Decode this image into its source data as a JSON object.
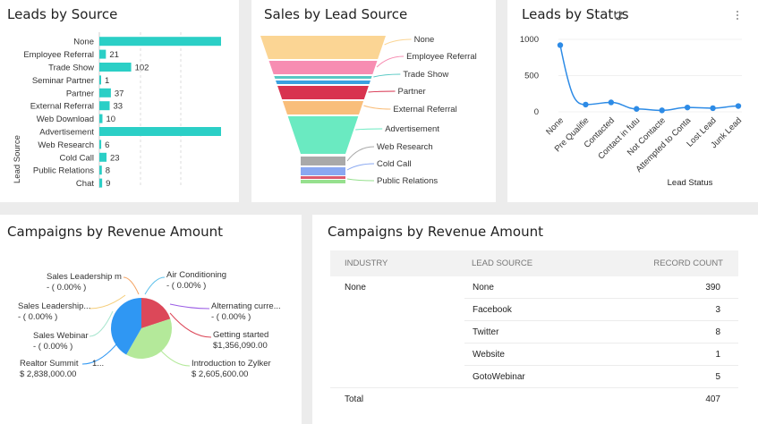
{
  "cards": {
    "leads_by_source": {
      "title": "Leads by Source",
      "chart_data": {
        "type": "bar",
        "orientation": "horizontal",
        "ylabel": "Lead Source",
        "categories": [
          "None",
          "Employee Referral",
          "Trade Show",
          "Seminar Partner",
          "Partner",
          "External Referral",
          "Web Download",
          "Advertisement",
          "Web Research",
          "Cold Call",
          "Public Relations",
          "Chat"
        ],
        "values": [
          390,
          21,
          102,
          1,
          37,
          33,
          10,
          390,
          6,
          23,
          8,
          9
        ],
        "value_labels": [
          "",
          "21",
          "102",
          "1",
          "37",
          "33",
          "10",
          "",
          "6",
          "23",
          "8",
          "9"
        ],
        "grid": true,
        "color": "#2bcfc6"
      }
    },
    "sales_by_lead_source": {
      "title": "Sales by Lead Source",
      "chart_data": {
        "type": "funnel",
        "labels": [
          "None",
          "Employee Referral",
          "Trade Show",
          "Partner",
          "External Referral",
          "Advertisement",
          "Web Research",
          "Cold Call",
          "Public Relations"
        ],
        "colors": [
          "#fbd594",
          "#f78db2",
          "#58c9c4",
          "#d8334f",
          "#f9be7b",
          "#6aeac1",
          "#a9a9a9",
          "#8aa8f1",
          "#96e08e"
        ]
      }
    },
    "leads_by_status": {
      "title": "Leads by Status",
      "xlabel": "Lead Status",
      "chart_data": {
        "type": "line",
        "categories": [
          "None",
          "Pre Qualifie",
          "Contacted",
          "Contact in futu",
          "Not Contacte",
          "Attempted to Conta",
          "Lost Lead",
          "Junk Lead"
        ],
        "values": [
          920,
          100,
          130,
          40,
          20,
          60,
          50,
          80
        ],
        "yticks": [
          "1000",
          "500",
          "0"
        ],
        "ylim": [
          0,
          1000
        ],
        "color": "#2d8be6"
      }
    },
    "campaigns_pie": {
      "title": "Campaigns by Revenue Amount",
      "chart_data": {
        "type": "pie",
        "slices": [
          {
            "label": "Sales Leadership m",
            "value_text": "- ( 0.00% )",
            "value": 0,
            "color": "#f4a261"
          },
          {
            "label": "Air Conditioning",
            "value_text": "- ( 0.00% )",
            "value": 0,
            "color": "#5bc0eb"
          },
          {
            "label": "Alternating curre...",
            "value_text": "- ( 0.00% )",
            "value": 0,
            "color": "#9b5de5"
          },
          {
            "label": "Sales Leadership...",
            "value_text": "- ( 0.00% )",
            "value": 0,
            "color": "#f5cd79"
          },
          {
            "label": "Getting started",
            "value_text": "$1,356,090.00",
            "value": 1356090,
            "color": "#dc4859"
          },
          {
            "label": "Sales Webinar",
            "value_text": "- ( 0.00% )",
            "value": 0,
            "color": "#a8e6cf"
          },
          {
            "label": "Introduction to Zylker",
            "value_text": "$ 2,605,600.00",
            "value": 2605600,
            "color": "#b4e99a"
          },
          {
            "label": "Realtor Summit",
            "value_text": "$ 2,838,000.00",
            "value": 2838000,
            "color": "#2f97f3"
          }
        ],
        "realtor_tick": "1..."
      }
    },
    "campaigns_table": {
      "title": "Campaigns by Revenue Amount",
      "headers": [
        "INDUSTRY",
        "LEAD SOURCE",
        "RECORD COUNT"
      ],
      "industry": "None",
      "rows": [
        {
          "source": "None",
          "count": "390"
        },
        {
          "source": "Facebook",
          "count": "3"
        },
        {
          "source": "Twitter",
          "count": "8"
        },
        {
          "source": "Website",
          "count": "1"
        },
        {
          "source": "GotoWebinar",
          "count": "5"
        }
      ],
      "total_label": "Total",
      "total_value": "407"
    }
  }
}
